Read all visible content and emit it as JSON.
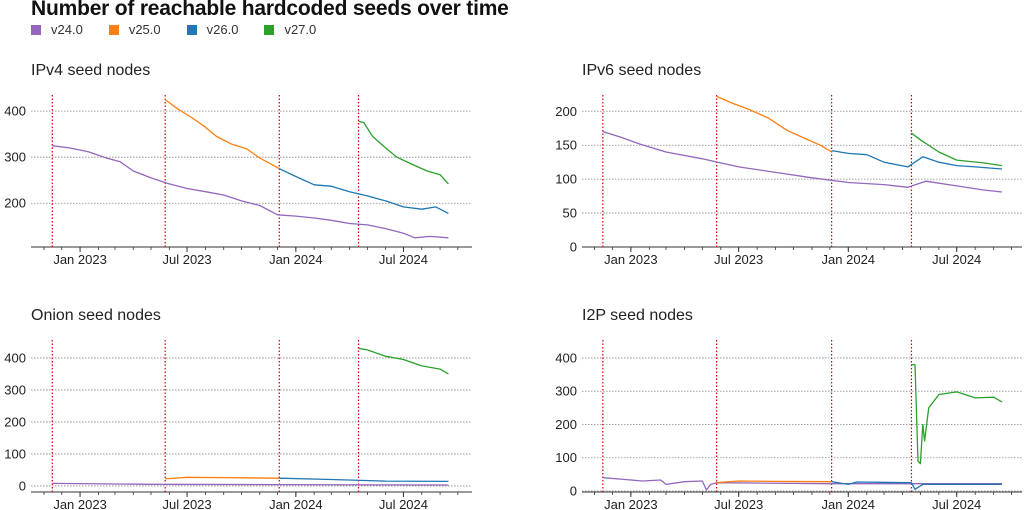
{
  "chart_data": [
    {
      "type": "line",
      "title": "Number of reachable hardcoded seeds over time",
      "legend": {
        "placement": "top-left",
        "entries": [
          "v24.0",
          "v25.0",
          "v26.0",
          "v27.0"
        ]
      },
      "colors": {
        "v24.0": "#9467bd",
        "v25.0": "#ff7f0e",
        "v26.0": "#1f77b4",
        "v27.0": "#2ca02c",
        "release_line": "#cc0000",
        "grid": "#888888"
      },
      "release_dates": [
        "2022-11-15",
        "2023-05-25",
        "2023-12-04",
        "2024-04-16"
      ],
      "x_ticks": [
        "Jan 2023",
        "Jul 2023",
        "Jan 2024",
        "Jul 2024"
      ],
      "x_tick_dates": [
        "2023-01-01",
        "2023-07-01",
        "2024-01-01",
        "2024-07-01"
      ],
      "grid": "horizontal dotted",
      "panels": [
        {
          "title": "IPv4 seed nodes",
          "ylim": [
            105,
            435
          ],
          "y_ticks": [
            200,
            300,
            400
          ],
          "series": [
            {
              "name": "v24.0",
              "points": [
                [
                  "2022-11-15",
                  325
                ],
                [
                  "2022-12-15",
                  320
                ],
                [
                  "2023-01-15",
                  312
                ],
                [
                  "2023-02-15",
                  298
                ],
                [
                  "2023-03-10",
                  290
                ],
                [
                  "2023-04-01",
                  270
                ],
                [
                  "2023-05-01",
                  255
                ],
                [
                  "2023-06-01",
                  242
                ],
                [
                  "2023-07-01",
                  232
                ],
                [
                  "2023-08-01",
                  225
                ],
                [
                  "2023-09-01",
                  218
                ],
                [
                  "2023-10-01",
                  205
                ],
                [
                  "2023-11-01",
                  195
                ],
                [
                  "2023-12-01",
                  175
                ],
                [
                  "2024-01-01",
                  172
                ],
                [
                  "2024-02-01",
                  168
                ],
                [
                  "2024-03-01",
                  163
                ],
                [
                  "2024-04-01",
                  156
                ],
                [
                  "2024-05-01",
                  153
                ],
                [
                  "2024-06-01",
                  145
                ],
                [
                  "2024-07-01",
                  135
                ],
                [
                  "2024-07-20",
                  125
                ],
                [
                  "2024-08-15",
                  128
                ],
                [
                  "2024-09-15",
                  125
                ]
              ]
            },
            {
              "name": "v25.0",
              "points": [
                [
                  "2023-05-25",
                  425
                ],
                [
                  "2023-06-15",
                  405
                ],
                [
                  "2023-07-10",
                  385
                ],
                [
                  "2023-08-01",
                  365
                ],
                [
                  "2023-08-20",
                  345
                ],
                [
                  "2023-09-15",
                  328
                ],
                [
                  "2023-10-10",
                  318
                ],
                [
                  "2023-11-01",
                  298
                ],
                [
                  "2023-11-20",
                  285
                ],
                [
                  "2023-12-04",
                  275
                ]
              ]
            },
            {
              "name": "v26.0",
              "points": [
                [
                  "2023-12-04",
                  275
                ],
                [
                  "2024-01-01",
                  258
                ],
                [
                  "2024-02-01",
                  240
                ],
                [
                  "2024-03-01",
                  237
                ],
                [
                  "2024-04-01",
                  225
                ],
                [
                  "2024-05-01",
                  216
                ],
                [
                  "2024-06-01",
                  205
                ],
                [
                  "2024-07-01",
                  192
                ],
                [
                  "2024-08-01",
                  187
                ],
                [
                  "2024-08-25",
                  192
                ],
                [
                  "2024-09-15",
                  178
                ]
              ]
            },
            {
              "name": "v27.0",
              "points": [
                [
                  "2024-04-16",
                  378
                ],
                [
                  "2024-04-25",
                  375
                ],
                [
                  "2024-05-10",
                  345
                ],
                [
                  "2024-06-01",
                  320
                ],
                [
                  "2024-06-20",
                  300
                ],
                [
                  "2024-07-15",
                  285
                ],
                [
                  "2024-08-10",
                  270
                ],
                [
                  "2024-09-01",
                  262
                ],
                [
                  "2024-09-15",
                  242
                ]
              ]
            }
          ]
        },
        {
          "title": "IPv6 seed nodes",
          "ylim": [
            0,
            224
          ],
          "y_ticks": [
            0,
            50,
            100,
            150,
            200
          ],
          "series": [
            {
              "name": "v24.0",
              "points": [
                [
                  "2022-11-15",
                  170
                ],
                [
                  "2022-12-15",
                  162
                ],
                [
                  "2023-01-15",
                  152
                ],
                [
                  "2023-03-01",
                  140
                ],
                [
                  "2023-05-01",
                  130
                ],
                [
                  "2023-07-01",
                  118
                ],
                [
                  "2023-09-01",
                  110
                ],
                [
                  "2023-11-01",
                  102
                ],
                [
                  "2024-01-01",
                  95
                ],
                [
                  "2024-03-01",
                  92
                ],
                [
                  "2024-04-10",
                  88
                ],
                [
                  "2024-05-10",
                  97
                ],
                [
                  "2024-07-01",
                  90
                ],
                [
                  "2024-08-15",
                  84
                ],
                [
                  "2024-09-15",
                  81
                ]
              ]
            },
            {
              "name": "v25.0",
              "points": [
                [
                  "2023-05-25",
                  222
                ],
                [
                  "2023-06-20",
                  212
                ],
                [
                  "2023-07-20",
                  202
                ],
                [
                  "2023-08-20",
                  190
                ],
                [
                  "2023-09-20",
                  172
                ],
                [
                  "2023-10-20",
                  160
                ],
                [
                  "2023-11-15",
                  150
                ],
                [
                  "2023-12-04",
                  140
                ]
              ]
            },
            {
              "name": "v26.0",
              "points": [
                [
                  "2023-12-04",
                  142
                ],
                [
                  "2024-01-01",
                  138
                ],
                [
                  "2024-02-01",
                  136
                ],
                [
                  "2024-03-01",
                  125
                ],
                [
                  "2024-04-10",
                  118
                ],
                [
                  "2024-05-05",
                  133
                ],
                [
                  "2024-06-01",
                  125
                ],
                [
                  "2024-07-01",
                  120
                ],
                [
                  "2024-08-01",
                  118
                ],
                [
                  "2024-09-15",
                  115
                ]
              ]
            },
            {
              "name": "v27.0",
              "points": [
                [
                  "2024-04-16",
                  168
                ],
                [
                  "2024-05-01",
                  158
                ],
                [
                  "2024-06-01",
                  140
                ],
                [
                  "2024-07-01",
                  128
                ],
                [
                  "2024-08-15",
                  124
                ],
                [
                  "2024-09-15",
                  120
                ]
              ]
            }
          ]
        },
        {
          "title": "Onion seed nodes",
          "ylim": [
            -19,
            456
          ],
          "y_ticks": [
            0,
            100,
            200,
            300,
            400
          ],
          "series": [
            {
              "name": "v24.0",
              "points": [
                [
                  "2022-11-15",
                  8
                ],
                [
                  "2023-05-01",
                  5
                ],
                [
                  "2023-12-01",
                  4
                ],
                [
                  "2024-09-15",
                  3
                ]
              ]
            },
            {
              "name": "v25.0",
              "points": [
                [
                  "2023-05-25",
                  22
                ],
                [
                  "2023-07-01",
                  27
                ],
                [
                  "2023-09-01",
                  26
                ],
                [
                  "2023-12-04",
                  24
                ]
              ]
            },
            {
              "name": "v26.0",
              "points": [
                [
                  "2023-12-04",
                  24
                ],
                [
                  "2024-03-01",
                  20
                ],
                [
                  "2024-06-01",
                  15
                ],
                [
                  "2024-09-15",
                  14
                ]
              ]
            },
            {
              "name": "v27.0",
              "points": [
                [
                  "2024-04-16",
                  430
                ],
                [
                  "2024-05-01",
                  425
                ],
                [
                  "2024-06-01",
                  405
                ],
                [
                  "2024-07-01",
                  395
                ],
                [
                  "2024-08-01",
                  375
                ],
                [
                  "2024-09-01",
                  365
                ],
                [
                  "2024-09-15",
                  350
                ]
              ]
            }
          ]
        },
        {
          "title": "I2P seed nodes",
          "ylim": [
            -3,
            454
          ],
          "y_ticks": [
            0,
            100,
            200,
            300,
            400
          ],
          "series": [
            {
              "name": "v24.0",
              "points": [
                [
                  "2022-11-15",
                  40
                ],
                [
                  "2022-12-20",
                  35
                ],
                [
                  "2023-01-20",
                  30
                ],
                [
                  "2023-02-20",
                  33
                ],
                [
                  "2023-03-01",
                  20
                ],
                [
                  "2023-04-01",
                  28
                ],
                [
                  "2023-05-01",
                  30
                ],
                [
                  "2023-05-08",
                  3
                ],
                [
                  "2023-05-15",
                  20
                ],
                [
                  "2023-05-25",
                  25
                ],
                [
                  "2023-12-01",
                  22
                ],
                [
                  "2024-09-15",
                  22
                ]
              ]
            },
            {
              "name": "v25.0",
              "points": [
                [
                  "2023-05-25",
                  25
                ],
                [
                  "2023-07-01",
                  30
                ],
                [
                  "2023-09-01",
                  29
                ],
                [
                  "2023-12-04",
                  28
                ]
              ]
            },
            {
              "name": "v26.0",
              "points": [
                [
                  "2023-12-04",
                  28
                ],
                [
                  "2024-01-01",
                  20
                ],
                [
                  "2024-01-15",
                  27
                ],
                [
                  "2024-04-16",
                  25
                ],
                [
                  "2024-04-22",
                  5
                ],
                [
                  "2024-05-05",
                  20
                ],
                [
                  "2024-07-01",
                  20
                ],
                [
                  "2024-09-15",
                  20
                ]
              ]
            },
            {
              "name": "v27.0",
              "points": [
                [
                  "2024-04-16",
                  380
                ],
                [
                  "2024-04-22",
                  380
                ],
                [
                  "2024-04-27",
                  90
                ],
                [
                  "2024-05-01",
                  82
                ],
                [
                  "2024-05-05",
                  200
                ],
                [
                  "2024-05-08",
                  150
                ],
                [
                  "2024-05-15",
                  250
                ],
                [
                  "2024-06-01",
                  290
                ],
                [
                  "2024-07-01",
                  298
                ],
                [
                  "2024-08-01",
                  280
                ],
                [
                  "2024-09-01",
                  282
                ],
                [
                  "2024-09-15",
                  268
                ]
              ]
            }
          ]
        }
      ]
    }
  ]
}
